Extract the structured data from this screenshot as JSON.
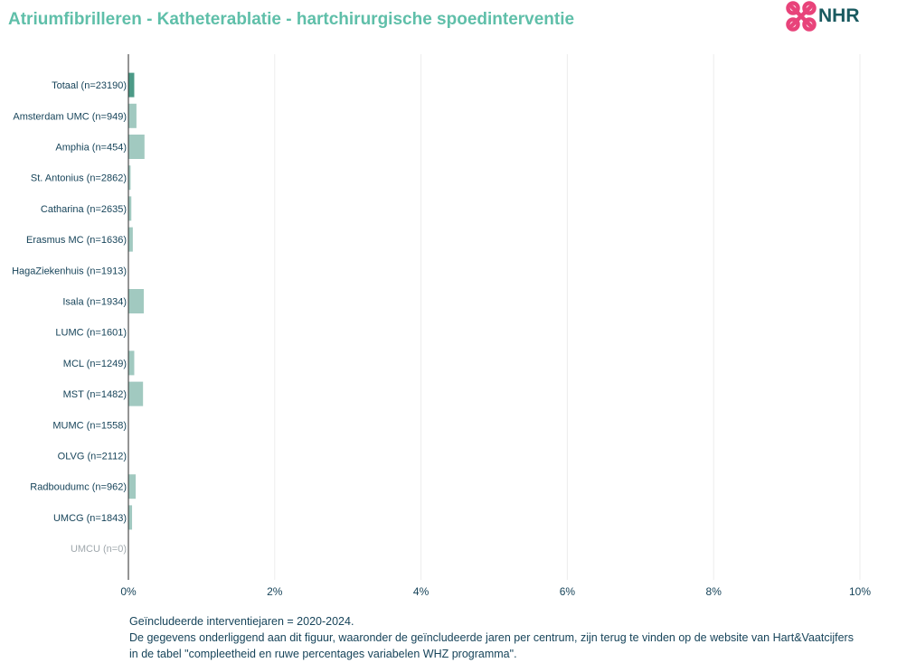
{
  "header": {
    "title": "Atriumfibrilleren - Katheterablatie - hartchirurgische spoedinterventie",
    "logo_text": "NHR"
  },
  "colors": {
    "title": "#5fbfa9",
    "bar_total": "#4c9a87",
    "bar_center": "#a1c9c0",
    "label": "#17445a",
    "label_muted": "#a0a8ad",
    "grid": "#ececec",
    "logo_pink": "#e8437a",
    "logo_text": "#1a5a60"
  },
  "chart_data": {
    "type": "bar",
    "orientation": "horizontal",
    "categories": [
      "Totaal (n=23190)",
      "Amsterdam UMC (n=949)",
      "Amphia (n=454)",
      "St. Antonius (n=2862)",
      "Catharina (n=2635)",
      "Erasmus MC (n=1636)",
      "HagaZiekenhuis (n=1913)",
      "Isala (n=1934)",
      "LUMC (n=1601)",
      "MCL (n=1249)",
      "MST (n=1482)",
      "MUMC (n=1558)",
      "OLVG (n=2112)",
      "Radboudumc (n=962)",
      "UMCG (n=1843)",
      "UMCU (n=0)"
    ],
    "values": [
      0.08,
      0.11,
      0.22,
      0.03,
      0.04,
      0.06,
      0,
      0.21,
      0,
      0.08,
      0.2,
      0,
      0,
      0.1,
      0.05,
      0
    ],
    "xlim": [
      0,
      10
    ],
    "xticks": [
      "0%",
      "2%",
      "4%",
      "6%",
      "8%",
      "10%"
    ],
    "tick_values": [
      0,
      2,
      4,
      6,
      8,
      10
    ],
    "muted_categories": [
      "UMCU (n=0)"
    ],
    "highlight_category": "Totaal (n=23190)",
    "grid": true
  },
  "footnote": {
    "line1": "Geïncludeerde interventiejaren = 2020-2024.",
    "line2": "De gegevens onderliggend aan dit figuur, waaronder de geïncludeerde jaren per centrum, zijn terug te vinden op de website van Hart&Vaatcijfers",
    "line3": "in de tabel \"compleetheid en ruwe percentages variabelen WHZ programma\"."
  }
}
